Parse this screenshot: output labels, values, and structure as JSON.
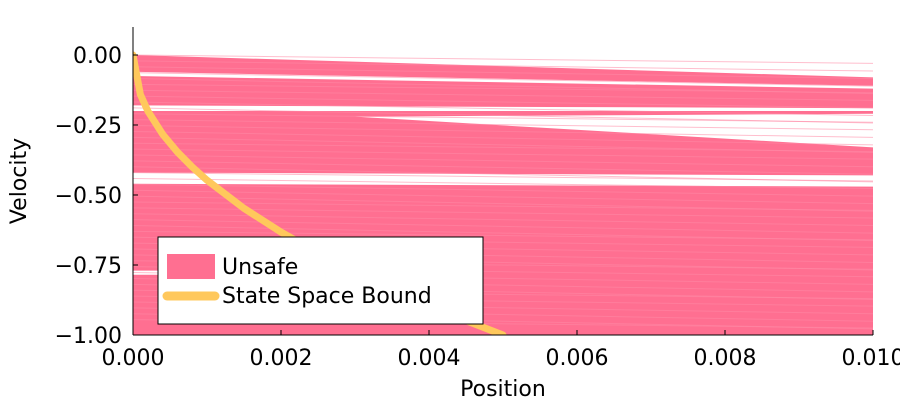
{
  "chart_data": {
    "type": "area",
    "xlabel": "Position",
    "ylabel": "Velocity",
    "xlim": [
      0,
      0.01
    ],
    "ylim": [
      -1.0,
      0.1
    ],
    "x_ticks": [
      0.0,
      0.002,
      0.004,
      0.006,
      0.008,
      0.01
    ],
    "x_tick_labels": [
      "0.000",
      "0.002",
      "0.004",
      "0.006",
      "0.008",
      "0.010"
    ],
    "y_ticks": [
      0.0,
      -0.25,
      -0.5,
      -0.75,
      -1.0
    ],
    "y_tick_labels": [
      "0.00",
      "−0.25",
      "−0.50",
      "−0.75",
      "−1.00"
    ],
    "grid": false,
    "legend_position": "bottom-left",
    "series": [
      {
        "name": "Unsafe",
        "kind": "filled-region",
        "color": "#ff6f91",
        "upper_boundary": {
          "x": [
            0.0,
            0.01
          ],
          "y": [
            0.0,
            -0.08
          ]
        },
        "lower_boundary": -1.0,
        "gaps": [
          {
            "x": [
              0.0,
              0.01
            ],
            "y_top": [
              -0.06,
              -0.11
            ],
            "y_bottom": [
              -0.075,
              -0.12
            ]
          },
          {
            "x": [
              0.0,
              0.01
            ],
            "y_top": [
              -0.18,
              -0.19
            ],
            "y_bottom": [
              -0.2,
              -0.2
            ]
          },
          {
            "x": [
              0.003,
              0.01
            ],
            "y_top": [
              -0.22,
              -0.21
            ],
            "y_bottom": [
              -0.22,
              -0.33
            ]
          },
          {
            "x": [
              0.0,
              0.01
            ],
            "y_top": [
              -0.42,
              -0.43
            ],
            "y_bottom": [
              -0.46,
              -0.47
            ]
          },
          {
            "x": [
              0.0,
              0.0005
            ],
            "y_top": [
              -0.77,
              -0.77
            ],
            "y_bottom": [
              -0.785,
              -0.785
            ]
          }
        ]
      },
      {
        "name": "State Space Bound",
        "kind": "line",
        "color": "#ffc85c",
        "x": [
          0.0,
          0.0001,
          0.0002,
          0.0004,
          0.0006,
          0.0008,
          0.001,
          0.0015,
          0.002,
          0.0025,
          0.003,
          0.0035,
          0.004,
          0.0045,
          0.005
        ],
        "y": [
          0.0,
          -0.1414,
          -0.2,
          -0.2828,
          -0.3464,
          -0.4,
          -0.4472,
          -0.5477,
          -0.6325,
          -0.7071,
          -0.7746,
          -0.8367,
          -0.8944,
          -0.9487,
          -1.0
        ]
      }
    ]
  }
}
